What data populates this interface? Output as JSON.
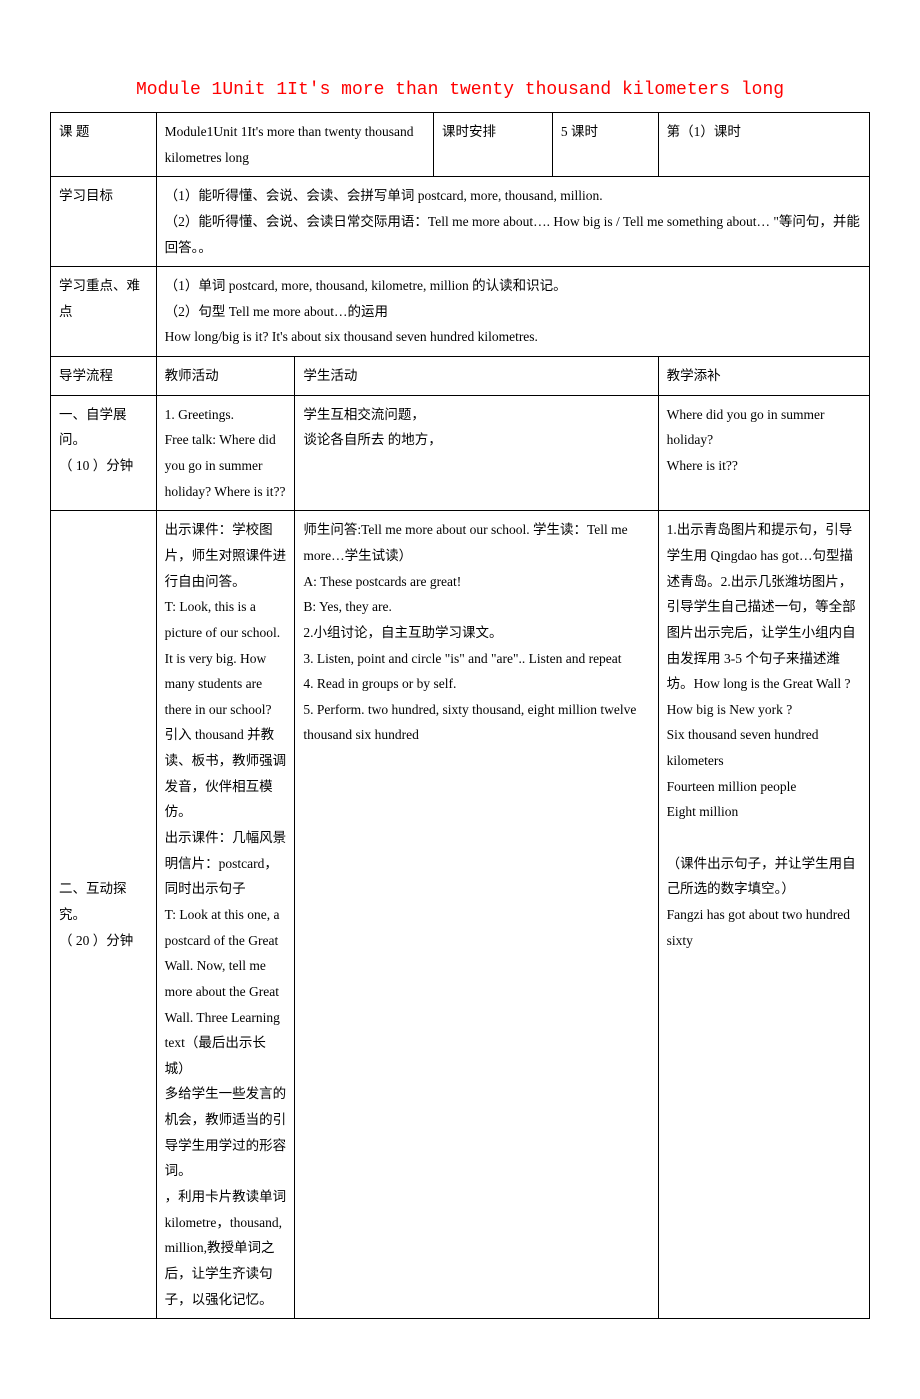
{
  "title": "Module 1Unit 1It's more than twenty thousand kilometers long",
  "rows": {
    "r1": {
      "label": "课  题",
      "topic": "Module1Unit 1It's more than twenty thousand kilometres long",
      "schedule_label": "课时安排",
      "hours": "5 课时",
      "period": "第（1）课时"
    },
    "r2": {
      "label": "学习目标",
      "content": "（1）能听得懂、会说、会读、会拼写单词 postcard, more, thousand, million.\n  （2）能听得懂、会说、会读日常交际用语：Tell me more about…. How big is / Tell me something about… \"等问句，并能回答。。"
    },
    "r3": {
      "label": "学习重点、难  点",
      "content": "（1）单词 postcard, more, thousand, kilometre, million 的认读和识记。\n（2）句型 Tell me more about…的运用\nHow long/big is it? It's about six thousand seven hundred kilometres."
    },
    "r4": {
      "c1": "导学流程",
      "c2": "教师活动",
      "c3": "学生活动",
      "c4": "教学添补"
    },
    "r5": {
      "label": "一、自学展问。\n（ 10 ）分钟",
      "teacher": "1. Greetings.\n   Free talk: Where did you go in summer holiday? Where is it??",
      "student": "学生互相交流问题，\n谈论各自所去 的地方，",
      "suppl": "Where did you go in summer holiday?\nWhere is it??"
    },
    "r6": {
      "label": "二、互动探究。\n（ 20 ）分钟",
      "teacher": "出示课件：学校图片，师生对照课件进行自由问答。\nT: Look, this is a picture of our school. It is very big. How many students are there in our school? 引入 thousand 并教读、板书，教师强调发音，伙伴相互模仿。\n出示课件：几幅风景明信片：postcard，同时出示句子\nT: Look at this one, a postcard of the Great Wall. Now, tell me more about the Great Wall. Three Learning text（最后出示长城）\n多给学生一些发言的机会，教师适当的引导学生用学过的形容词。\n，利用卡片教读单词 kilometre，thousand, million,教授单词之后，让学生齐读句子，以强化记忆。",
      "student": " 师生问答:Tell me more about our school.   学生读：Tell me more…学生试读）\nA: These postcards are great!\nB: Yes, they are.\n2.小组讨论，自主互助学习课文。\n3. Listen, point and circle \"is\" and \"are\".. Listen and repeat\n4. Read in groups or by self.\n5. Perform. two hundred, sixty thousand, eight million twelve thousand six hundred",
      "suppl": "1.出示青岛图片和提示句，引导学生用 Qingdao has got…句型描述青岛。2.出示几张潍坊图片，引导学生自己描述一句，等全部图片出示完后，让学生小组内自由发挥用 3-5 个句子来描述潍坊。How long is the Great Wall ?\nHow big is New york  ?\nSix thousand seven hundred kilometers\nFourteen million people\n Eight million\n\n（课件出示句子，并让学生用自己所选的数字填空。）\n    Fangzi has got about two hundred sixty"
    }
  }
}
